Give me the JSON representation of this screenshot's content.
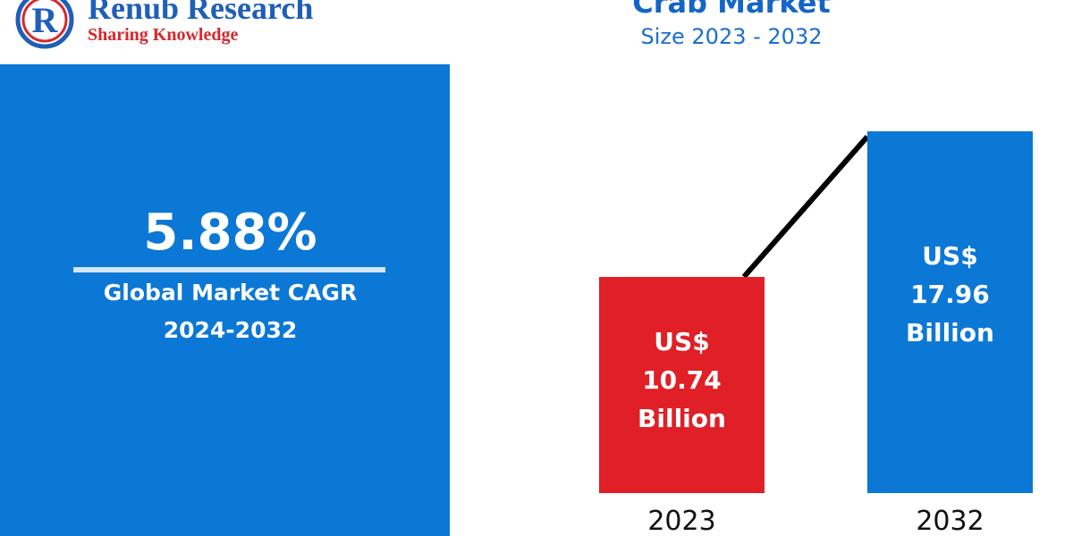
{
  "logo": {
    "name": "Renub Research",
    "tagline": "Sharing Knowledge"
  },
  "cagr": {
    "value": "5.88%",
    "label": "Global Market CAGR",
    "period": "2024-2032"
  },
  "chart_data": {
    "type": "bar",
    "title": "Crab Market",
    "subtitle": "Size 2023 - 2032",
    "categories": [
      "2023",
      "2032"
    ],
    "values": [
      10.74,
      17.96
    ],
    "value_labels": [
      "US$ 10.74 Billion",
      "US$ 17.96 Billion"
    ],
    "colors": [
      "#e01f26",
      "#0b78d6"
    ]
  }
}
